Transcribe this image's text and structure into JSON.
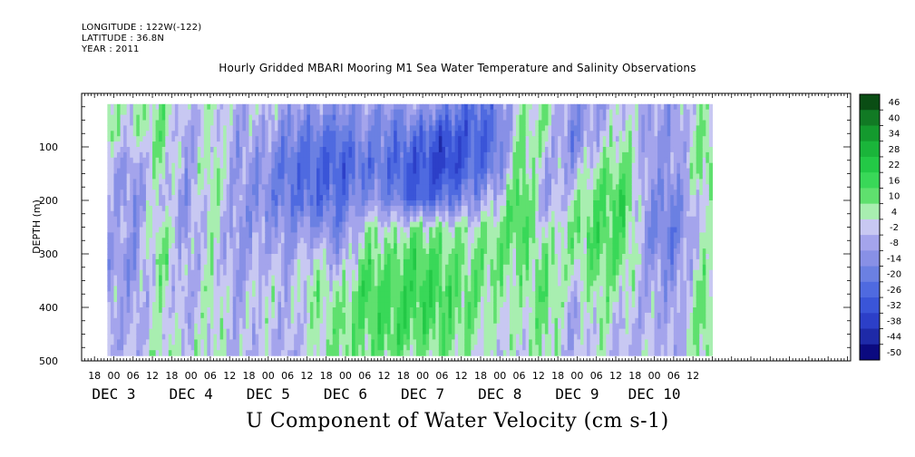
{
  "header": {
    "longitude": "LONGITUDE : 122W(-122)",
    "latitude": "LATITUDE : 36.8N",
    "year": "YEAR : 2011"
  },
  "chart_data": {
    "type": "heatmap",
    "title": "Hourly Gridded MBARI Mooring M1 Sea Water Temperature and Salinity Observations",
    "xlabel": "U Component of Water Velocity (cm s-1)",
    "ylabel": "DEPTH (m)",
    "ylim": [
      500,
      0
    ],
    "y_ticks": [
      100,
      200,
      300,
      400,
      500
    ],
    "x_range_hours": [
      -10,
      229
    ],
    "data_start_hour": -2,
    "x_hour_ticks": [
      "18",
      "00",
      "06",
      "12",
      "18",
      "00",
      "06",
      "12",
      "18",
      "00",
      "06",
      "12",
      "18",
      "00",
      "06",
      "12",
      "18",
      "00",
      "06",
      "12",
      "18",
      "00",
      "06",
      "12",
      "18",
      "00",
      "06",
      "12",
      "18",
      "00",
      "06",
      "12"
    ],
    "x_day_labels": [
      {
        "label": "DEC  3",
        "hour": 0
      },
      {
        "label": "DEC  4",
        "hour": 24
      },
      {
        "label": "DEC  5",
        "hour": 48
      },
      {
        "label": "DEC  6",
        "hour": 72
      },
      {
        "label": "DEC  7",
        "hour": 96
      },
      {
        "label": "DEC  8",
        "hour": 120
      },
      {
        "label": "DEC  9",
        "hour": 144
      },
      {
        "label": "DEC 10",
        "hour": 168
      }
    ],
    "colorbar_levels": [
      46,
      40,
      34,
      28,
      22,
      16,
      10,
      4,
      -2,
      -8,
      -14,
      -20,
      -26,
      -32,
      -38,
      -44,
      -50
    ],
    "colorbar_colors": [
      "#0a4d14",
      "#117a24",
      "#149a2e",
      "#1ab53a",
      "#23c946",
      "#39d858",
      "#5fe06e",
      "#a8eeb0",
      "#c8c8f2",
      "#a4a4ec",
      "#8890e6",
      "#6b80e2",
      "#4f6ae0",
      "#3a55d8",
      "#2c3fc8",
      "#1e2aa8",
      "#0b0a80"
    ],
    "depth_profiles_cm_s": [
      {
        "hour": -2,
        "values": [
          8,
          6,
          -6,
          -4,
          -2,
          -8,
          -4,
          -6,
          -2
        ]
      },
      {
        "hour": 6,
        "values": [
          4,
          2,
          -8,
          -10,
          -8,
          -12,
          -6,
          -4,
          -4
        ]
      },
      {
        "hour": 14,
        "values": [
          10,
          12,
          8,
          2,
          10,
          12,
          6,
          4,
          8
        ]
      },
      {
        "hour": 22,
        "values": [
          -2,
          -8,
          -6,
          -10,
          -8,
          -4,
          -6,
          -2,
          2
        ]
      },
      {
        "hour": 30,
        "values": [
          6,
          4,
          10,
          8,
          6,
          4,
          8,
          6,
          4
        ]
      },
      {
        "hour": 38,
        "values": [
          -4,
          -6,
          -8,
          -6,
          -10,
          -8,
          -6,
          -4,
          -2
        ]
      },
      {
        "hour": 46,
        "values": [
          2,
          -4,
          -10,
          -12,
          -6,
          -2,
          4,
          2,
          0
        ]
      },
      {
        "hour": 54,
        "values": [
          -6,
          -14,
          -20,
          -18,
          -10,
          -6,
          -2,
          -4,
          -6
        ]
      },
      {
        "hour": 62,
        "values": [
          -8,
          -18,
          -24,
          -22,
          -8,
          4,
          10,
          6,
          4
        ]
      },
      {
        "hour": 70,
        "values": [
          -10,
          -20,
          -26,
          -20,
          -14,
          -6,
          6,
          12,
          10
        ]
      },
      {
        "hour": 78,
        "values": [
          -6,
          -12,
          -18,
          -10,
          6,
          14,
          18,
          14,
          10
        ]
      },
      {
        "hour": 86,
        "values": [
          -10,
          -18,
          -22,
          -14,
          4,
          12,
          16,
          18,
          12
        ]
      },
      {
        "hour": 94,
        "values": [
          -4,
          -20,
          -28,
          -26,
          10,
          18,
          20,
          16,
          8
        ]
      },
      {
        "hour": 102,
        "values": [
          -12,
          -30,
          -34,
          -20,
          8,
          14,
          18,
          14,
          10
        ]
      },
      {
        "hour": 110,
        "values": [
          -20,
          -26,
          -24,
          -12,
          6,
          10,
          12,
          10,
          6
        ]
      },
      {
        "hour": 118,
        "values": [
          -16,
          -22,
          -18,
          -2,
          10,
          12,
          8,
          4,
          2
        ]
      },
      {
        "hour": 126,
        "values": [
          4,
          10,
          14,
          18,
          16,
          10,
          6,
          4,
          2
        ]
      },
      {
        "hour": 134,
        "values": [
          8,
          6,
          -4,
          -8,
          2,
          10,
          14,
          12,
          8
        ]
      },
      {
        "hour": 142,
        "values": [
          -10,
          -16,
          -6,
          4,
          10,
          6,
          -2,
          -6,
          -4
        ]
      },
      {
        "hour": 150,
        "values": [
          -8,
          -2,
          8,
          14,
          16,
          14,
          10,
          6,
          4
        ]
      },
      {
        "hour": 158,
        "values": [
          2,
          6,
          12,
          18,
          16,
          12,
          4,
          -2,
          -4
        ]
      },
      {
        "hour": 166,
        "values": [
          -4,
          -8,
          -6,
          -10,
          -14,
          -8,
          -4,
          -2,
          2
        ]
      },
      {
        "hour": 174,
        "values": [
          -6,
          -10,
          -8,
          -14,
          -16,
          -12,
          -8,
          -6,
          -4
        ]
      },
      {
        "hour": 182,
        "values": [
          6,
          10,
          12,
          4,
          2,
          6,
          10,
          12,
          8
        ]
      }
    ]
  }
}
